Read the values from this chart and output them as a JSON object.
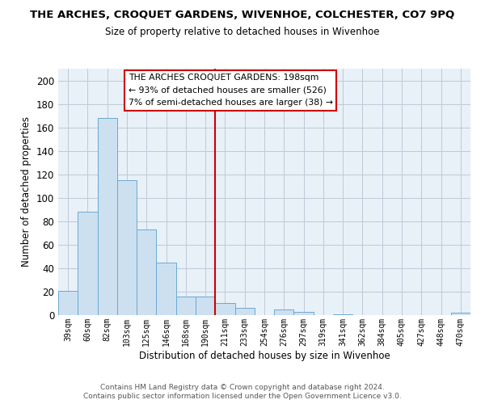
{
  "title": "THE ARCHES, CROQUET GARDENS, WIVENHOE, COLCHESTER, CO7 9PQ",
  "subtitle": "Size of property relative to detached houses in Wivenhoe",
  "xlabel": "Distribution of detached houses by size in Wivenhoe",
  "ylabel": "Number of detached properties",
  "bar_labels": [
    "39sqm",
    "60sqm",
    "82sqm",
    "103sqm",
    "125sqm",
    "146sqm",
    "168sqm",
    "190sqm",
    "211sqm",
    "233sqm",
    "254sqm",
    "276sqm",
    "297sqm",
    "319sqm",
    "341sqm",
    "362sqm",
    "384sqm",
    "405sqm",
    "427sqm",
    "448sqm",
    "470sqm"
  ],
  "bar_values": [
    21,
    88,
    168,
    115,
    73,
    45,
    16,
    16,
    10,
    6,
    0,
    5,
    3,
    0,
    1,
    0,
    0,
    0,
    0,
    0,
    2
  ],
  "bar_color": "#cde0f0",
  "bar_edge_color": "#6aaad4",
  "vline_x": 7.5,
  "vline_color": "#cc0000",
  "annotation_title": "THE ARCHES CROQUET GARDENS: 198sqm",
  "annotation_line1": "← 93% of detached houses are smaller (526)",
  "annotation_line2": "7% of semi-detached houses are larger (38) →",
  "annotation_box_color": "#ffffff",
  "annotation_box_edge": "#cc0000",
  "ylim": [
    0,
    210
  ],
  "yticks": [
    0,
    20,
    40,
    60,
    80,
    100,
    120,
    140,
    160,
    180,
    200
  ],
  "footer1": "Contains HM Land Registry data © Crown copyright and database right 2024.",
  "footer2": "Contains public sector information licensed under the Open Government Licence v3.0.",
  "bg_color": "#ffffff",
  "plot_bg_color": "#e8f0f8",
  "grid_color": "#c0c8d8"
}
